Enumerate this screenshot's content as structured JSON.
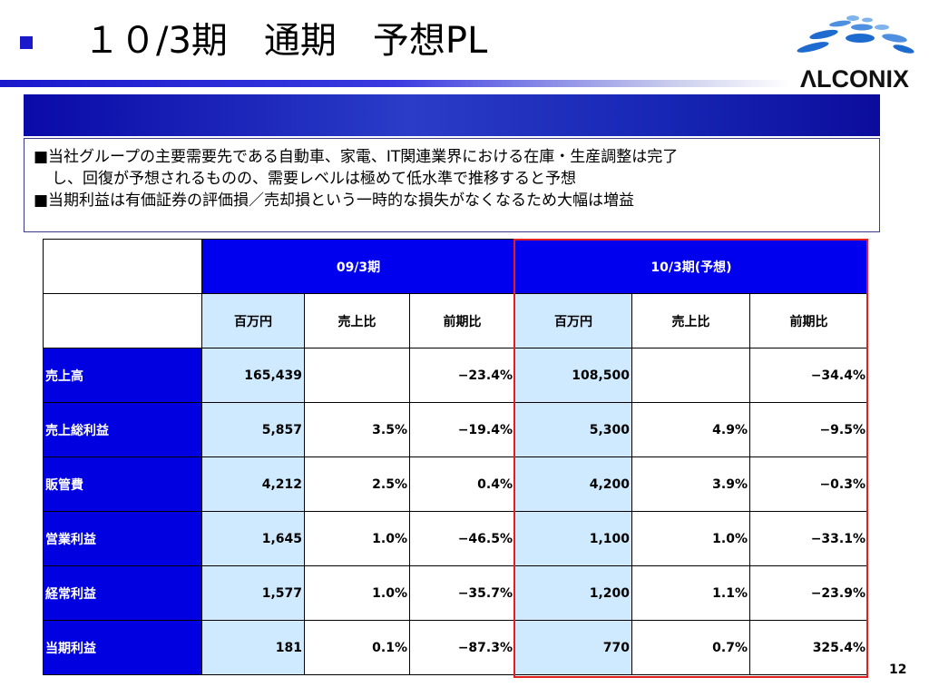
{
  "title": "１０/3期　通期　予想PL",
  "logo": {
    "text": "ΛLCONIX",
    "colors": {
      "blue": "#1e6bd0",
      "light": "#7fb3ec"
    }
  },
  "notes": [
    "■当社グループの主要需要先である自動車、家電、IT関連業界における在庫・生産調整は完了",
    "し、回復が予想されるものの、需要レベルは極めて低水準で推移すると予想",
    "■当期利益は有価証券の評価損／売却損という一時的な損失がなくなるため大幅は増益"
  ],
  "table": {
    "periods": [
      "09/3期",
      "10/3期(予想)"
    ],
    "subheaders": [
      "百万円",
      "売上比",
      "前期比",
      "百万円",
      "売上比",
      "前期比"
    ],
    "rows": [
      {
        "label": "売上高",
        "cells": [
          "165,439",
          "",
          "−23.4%",
          "108,500",
          "",
          "−34.4%"
        ]
      },
      {
        "label": "売上総利益",
        "cells": [
          "5,857",
          "3.5%",
          "−19.4%",
          "5,300",
          "4.9%",
          "−9.5%"
        ]
      },
      {
        "label": "販管費",
        "cells": [
          "4,212",
          "2.5%",
          "0.4%",
          "4,200",
          "3.9%",
          "−0.3%"
        ]
      },
      {
        "label": "営業利益",
        "cells": [
          "1,645",
          "1.0%",
          "−46.5%",
          "1,100",
          "1.0%",
          "−33.1%"
        ]
      },
      {
        "label": "経常利益",
        "cells": [
          "1,577",
          "1.0%",
          "−35.7%",
          "1,200",
          "1.1%",
          "−23.9%"
        ]
      },
      {
        "label": "当期利益",
        "cells": [
          "181",
          "0.1%",
          "−87.3%",
          "770",
          "0.7%",
          "325.4%"
        ]
      }
    ]
  },
  "page_number": "12",
  "colors": {
    "header_blue": "#0000ee",
    "light_blue": "#cfeaff",
    "highlight_red": "#e02020"
  }
}
